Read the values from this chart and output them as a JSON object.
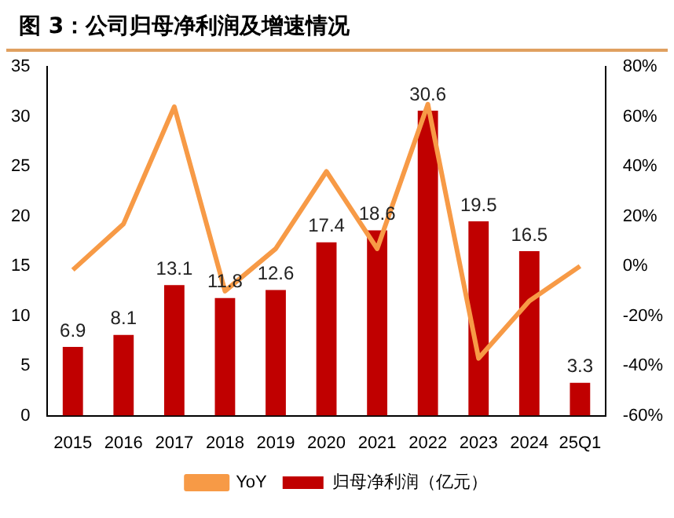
{
  "chart_data": {
    "type": "bar",
    "title": "图 3：公司归母净利润及增速情况",
    "categories": [
      "2015",
      "2016",
      "2017",
      "2018",
      "2019",
      "2020",
      "2021",
      "2022",
      "2023",
      "2024",
      "25Q1"
    ],
    "series": [
      {
        "name": "归母净利润（亿元）",
        "color": "#c00000",
        "values": [
          6.9,
          8.1,
          13.1,
          11.8,
          12.6,
          17.4,
          18.6,
          30.6,
          19.5,
          16.5,
          3.3
        ],
        "value_labels": [
          "6.9",
          "8.1",
          "13.1",
          "11.8",
          "12.6",
          "17.4",
          "18.6",
          "30.6",
          "19.5",
          "16.5",
          "3.3"
        ]
      },
      {
        "name": "YoY",
        "type": "line",
        "axis": "y2",
        "color": "#f79a46",
        "values": [
          -1.5,
          17,
          64,
          -10,
          7,
          38,
          7,
          65,
          -37,
          -14,
          0
        ]
      }
    ],
    "ylim": [
      0,
      35
    ],
    "yticks": [
      0,
      5,
      10,
      15,
      20,
      25,
      30,
      35
    ],
    "y2lim": [
      -60,
      80
    ],
    "y2ticks": [
      {
        "value": -60,
        "label": "-60%"
      },
      {
        "value": -40,
        "label": "-40%"
      },
      {
        "value": -20,
        "label": "-20%"
      },
      {
        "value": 0,
        "label": "0%"
      },
      {
        "value": 20,
        "label": "20%"
      },
      {
        "value": 40,
        "label": "40%"
      },
      {
        "value": 60,
        "label": "60%"
      },
      {
        "value": 80,
        "label": "80%"
      }
    ],
    "grid": false,
    "legend": "bottom",
    "marker": "none"
  }
}
